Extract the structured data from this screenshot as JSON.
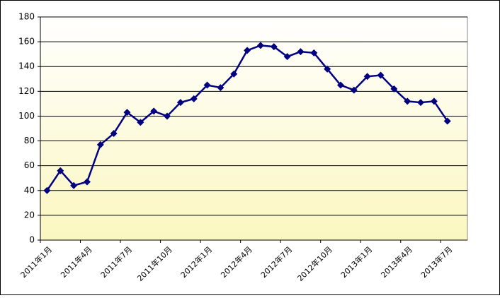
{
  "chart_data": {
    "type": "line",
    "categories": [
      "2011年1月",
      null,
      null,
      "2011年4月",
      null,
      null,
      "2011年7月",
      null,
      null,
      "2011年10月",
      null,
      null,
      "2012年1月",
      null,
      null,
      "2012年4月",
      null,
      null,
      "2012年7月",
      null,
      null,
      "2012年10月",
      null,
      null,
      "2013年1月",
      null,
      null,
      "2013年4月",
      null,
      null,
      "2013年7月",
      null
    ],
    "series": [
      {
        "color": "#000080",
        "values": [
          40,
          56,
          44,
          47,
          77,
          86,
          103,
          95,
          104,
          100,
          111,
          114,
          125,
          123,
          134,
          153,
          157,
          156,
          148,
          152,
          151,
          138,
          125,
          121,
          132,
          133,
          122,
          112,
          111,
          112,
          96,
          null
        ]
      }
    ],
    "ylim": [
      0,
      180
    ],
    "yticks": [
      0,
      20,
      40,
      60,
      80,
      100,
      120,
      140,
      160,
      180
    ],
    "grid": true
  }
}
